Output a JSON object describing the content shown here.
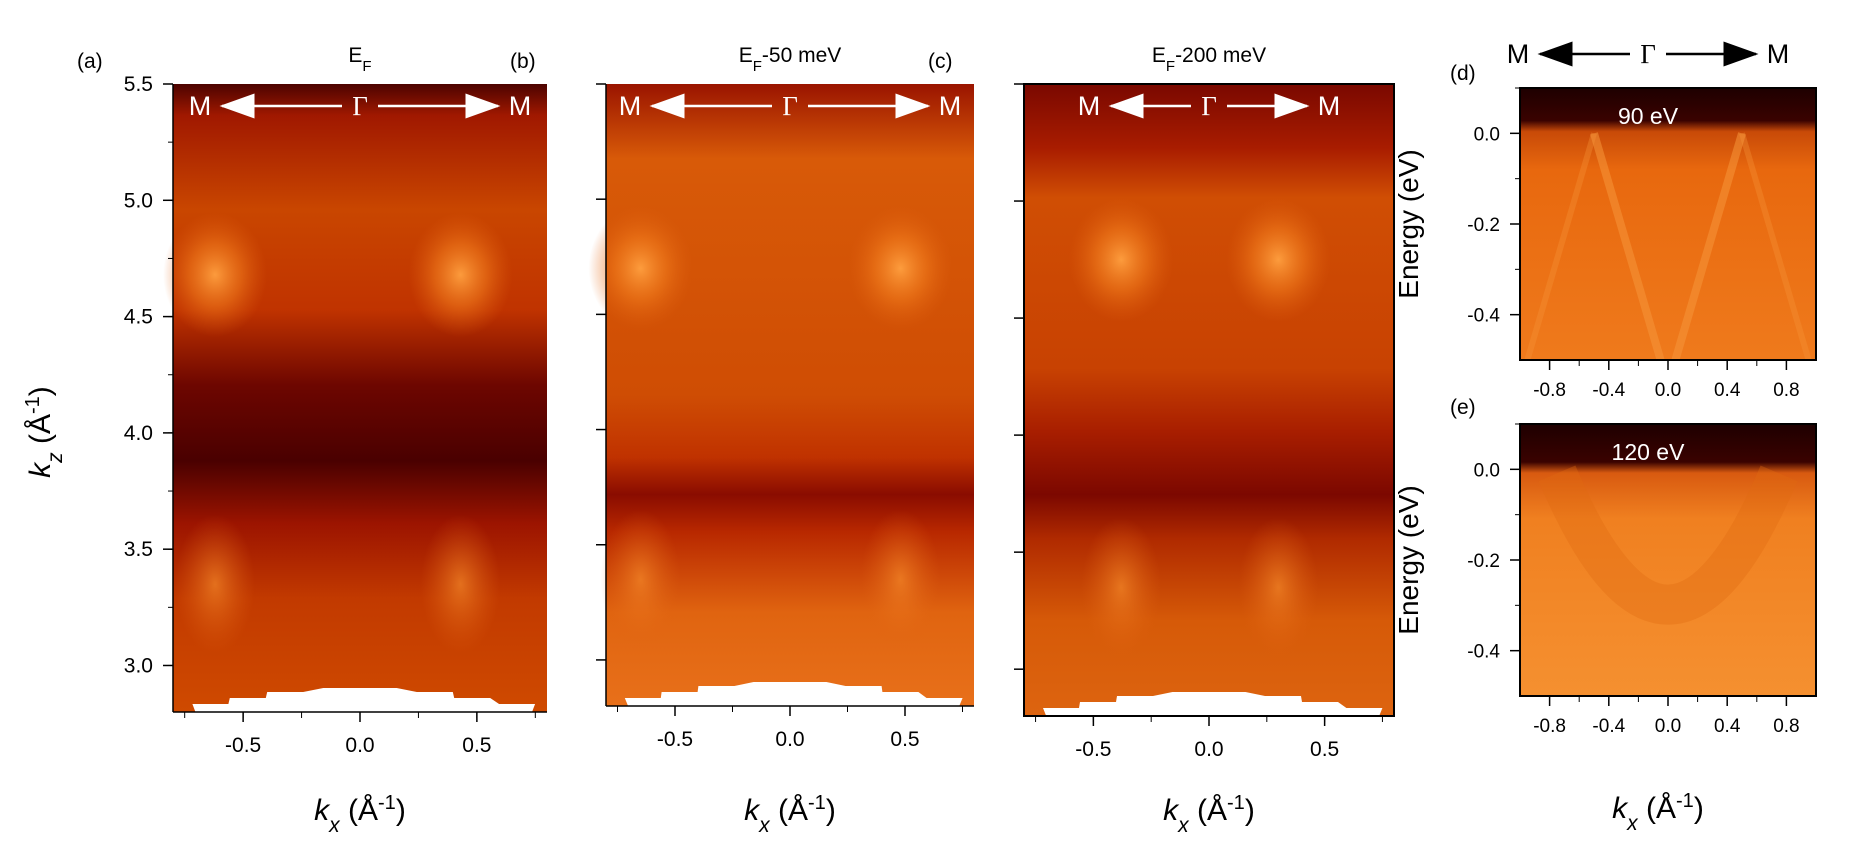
{
  "colors": {
    "dark": "#3a0000",
    "mid_dark": "#8c0c00",
    "mid": "#b72a00",
    "bright": "#e8660f",
    "hot": "#ff9a36",
    "arrow": "#ffffff"
  },
  "chart_data": [
    {
      "type": "heatmap",
      "panel_label": "(a)",
      "title": "E_F",
      "title_main": "E",
      "title_sub": "F",
      "title_rest": "",
      "xlabel_main": "k",
      "xlabel_sub": "x",
      "xlabel_unit": "(Å",
      "xlabel_exp": "-1",
      "xlabel_close": ")",
      "ylabel_main": "k",
      "ylabel_sub": "z",
      "ylabel_unit": "(Å",
      "ylabel_exp": "-1",
      "ylabel_close": ")",
      "xlim": [
        -0.8,
        0.8
      ],
      "ylim": [
        2.8,
        5.5
      ],
      "xticks": [
        "-0.5",
        "0.0",
        "0.5"
      ],
      "xtick_values": [
        -0.5,
        0.0,
        0.5
      ],
      "yticks": [
        "3.0",
        "3.5",
        "4.0",
        "4.5",
        "5.0",
        "5.5"
      ],
      "ytick_values": [
        3.0,
        3.5,
        4.0,
        4.5,
        5.0,
        5.5
      ],
      "annotation": {
        "left": "M",
        "center": "Γ",
        "right": "M"
      },
      "features": {
        "dark_bands": [
          {
            "kz": 3.8,
            "width": 0.35
          }
        ],
        "bright_spots": [
          {
            "kx": -0.62,
            "kz": 4.68
          },
          {
            "kx": 0.43,
            "kz": 4.68
          }
        ]
      }
    },
    {
      "type": "heatmap",
      "panel_label": "(b)",
      "title_main": "E",
      "title_sub": "F",
      "title_rest": "-50 meV",
      "xlabel_main": "k",
      "xlabel_sub": "x",
      "xlabel_unit": "(Å",
      "xlabel_exp": "-1",
      "xlabel_close": ")",
      "xlim": [
        -0.8,
        0.8
      ],
      "ylim": [
        2.8,
        5.5
      ],
      "xticks": [
        "-0.5",
        "0.0",
        "0.5"
      ],
      "xtick_values": [
        -0.5,
        0.0,
        0.5
      ],
      "annotation": {
        "left": "M",
        "center": "Γ",
        "right": "M"
      },
      "features": {
        "dark_bands": [
          {
            "kz": 3.75,
            "width": 0.18
          }
        ],
        "bright_spots": [
          {
            "kx": -0.65,
            "kz": 4.7
          },
          {
            "kx": 0.48,
            "kz": 4.7
          }
        ]
      }
    },
    {
      "type": "heatmap",
      "panel_label": "(c)",
      "title_main": "E",
      "title_sub": "F",
      "title_rest": "-200 meV",
      "xlabel_main": "k",
      "xlabel_sub": "x",
      "xlabel_unit": "(Å",
      "xlabel_exp": "-1",
      "xlabel_close": ")",
      "xlim": [
        -0.8,
        0.8
      ],
      "ylim": [
        2.8,
        5.5
      ],
      "xticks": [
        "-0.5",
        "0.0",
        "0.5"
      ],
      "xtick_values": [
        -0.5,
        0.0,
        0.5
      ],
      "annotation": {
        "left": "M",
        "center": "Γ",
        "right": "M"
      },
      "features": {
        "dark_bands": [
          {
            "kz": 3.75,
            "width": 0.2
          }
        ],
        "bright_spots": [
          {
            "kx": -0.38,
            "kz": 4.75
          },
          {
            "kx": 0.3,
            "kz": 4.75
          }
        ]
      }
    },
    {
      "type": "heatmap",
      "panel_label": "(d)",
      "photon_energy": "90 eV",
      "top_annotation": {
        "left": "M",
        "center": "Γ",
        "right": "M"
      },
      "ylabel": "Energy (eV)",
      "xlim": [
        -1.0,
        1.0
      ],
      "ylim": [
        -0.5,
        0.1
      ],
      "xticks": [
        "-0.8",
        "-0.4",
        "0.0",
        "0.4",
        "0.8"
      ],
      "xtick_values": [
        -0.8,
        -0.4,
        0.0,
        0.4,
        0.8
      ],
      "yticks": [
        "0.0",
        "-0.2",
        "-0.4"
      ],
      "ytick_values": [
        0.0,
        -0.2,
        -0.4
      ],
      "features": {
        "fermi_level": 0.0,
        "band_tops_kx": [
          -0.5,
          0.5
        ]
      }
    },
    {
      "type": "heatmap",
      "panel_label": "(e)",
      "photon_energy": "120 eV",
      "ylabel": "Energy (eV)",
      "xlabel_main": "k",
      "xlabel_sub": "x",
      "xlabel_unit": "(Å",
      "xlabel_exp": "-1",
      "xlabel_close": ")",
      "xlim": [
        -1.0,
        1.0
      ],
      "ylim": [
        -0.5,
        0.1
      ],
      "xticks": [
        "-0.8",
        "-0.4",
        "0.0",
        "0.4",
        "0.8"
      ],
      "xtick_values": [
        -0.8,
        -0.4,
        0.0,
        0.4,
        0.8
      ],
      "yticks": [
        "0.0",
        "-0.2",
        "-0.4"
      ],
      "ytick_values": [
        0.0,
        -0.2,
        -0.4
      ],
      "features": {
        "fermi_level": 0.0,
        "band_tops_kx": [
          -0.45,
          0.45
        ]
      }
    }
  ]
}
